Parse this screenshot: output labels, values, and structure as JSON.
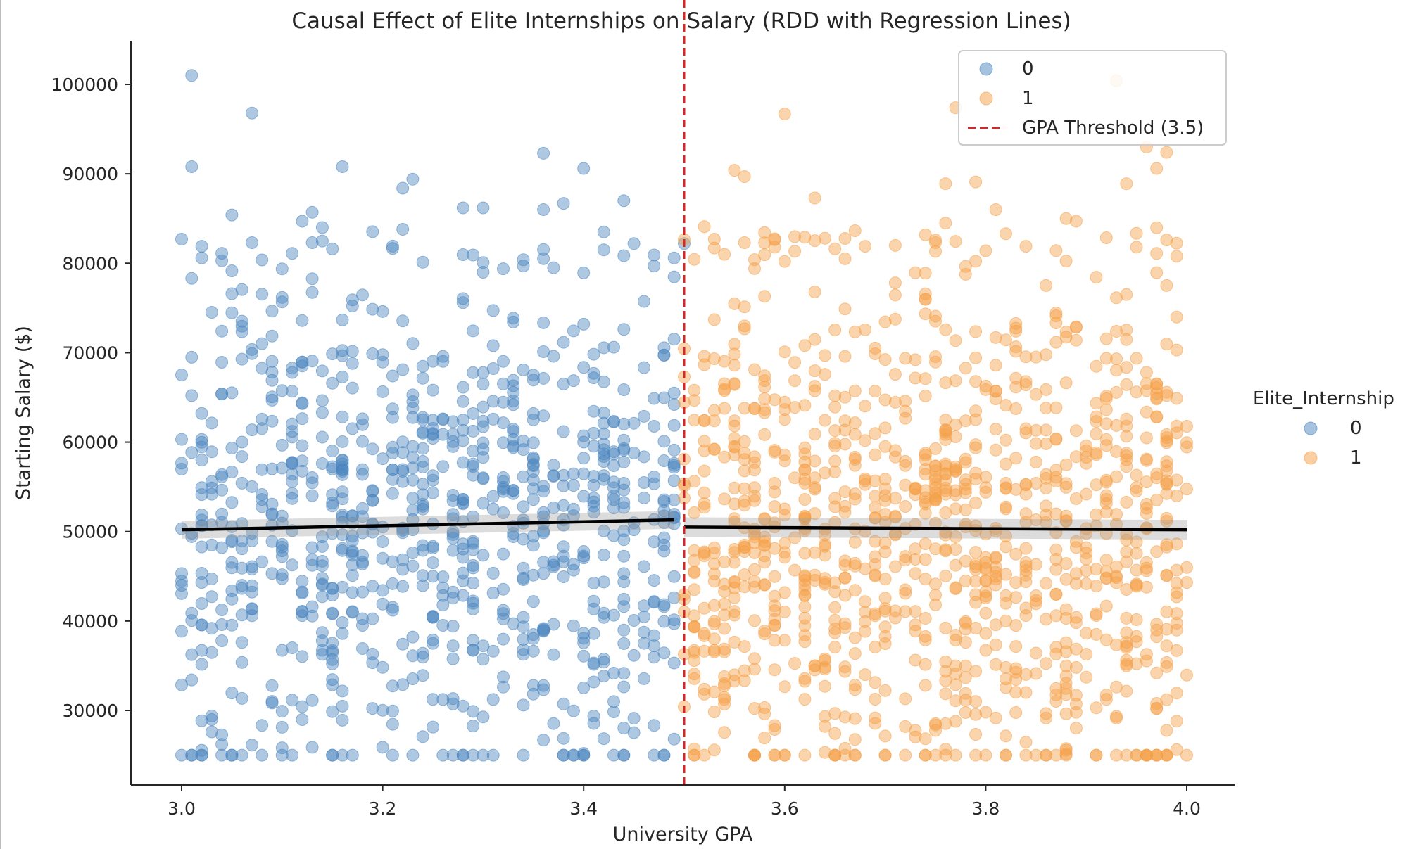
{
  "chart_data": {
    "type": "scatter",
    "title": "Causal Effect of Elite Internships on Salary (RDD with Regression Lines)",
    "xlabel": "University GPA",
    "ylabel": "Starting Salary ($)",
    "xlim": [
      2.95,
      4.05
    ],
    "ylim": [
      21500,
      104800
    ],
    "x_ticks": [
      3.0,
      3.2,
      3.4,
      3.6,
      3.8,
      4.0
    ],
    "x_tick_labels": [
      "3.0",
      "3.2",
      "3.4",
      "3.6",
      "3.8",
      "4.0"
    ],
    "y_ticks": [
      30000,
      40000,
      50000,
      60000,
      70000,
      80000,
      90000,
      100000
    ],
    "y_tick_labels": [
      "30000",
      "40000",
      "50000",
      "60000",
      "70000",
      "80000",
      "90000",
      "100000"
    ],
    "grid": false,
    "threshold": {
      "x": 3.5,
      "label": "GPA Threshold (3.5)",
      "color": "#d62728"
    },
    "legend_inside": {
      "placement": "top-right",
      "entries": [
        {
          "label": "0",
          "color": "#4c86bf"
        },
        {
          "label": "1",
          "color": "#f5a048"
        },
        {
          "label": "GPA Threshold (3.5)",
          "color": "#d62728"
        }
      ]
    },
    "legend_outside": {
      "placement": "right",
      "title": "Elite_Internship",
      "entries": [
        {
          "label": "0",
          "color": "#4c86bf"
        },
        {
          "label": "1",
          "color": "#f5a048"
        }
      ]
    },
    "regression_lines": [
      {
        "group": "0",
        "x": [
          3.0,
          3.49
        ],
        "y": [
          50200,
          51300
        ],
        "ci_halfwidth": 1000,
        "color": "#000000"
      },
      {
        "group": "1",
        "x": [
          3.5,
          4.0
        ],
        "y": [
          50500,
          50200
        ],
        "ci_halfwidth": 1100,
        "color": "#000000"
      }
    ],
    "series": [
      {
        "name": "0",
        "color": "#4c86bf",
        "n_points": 900,
        "x_range": [
          3.0,
          3.5
        ],
        "notable_points": [
          [
            3.01,
            101000
          ],
          [
            3.07,
            96800
          ],
          [
            3.01,
            90800
          ],
          [
            3.16,
            90800
          ],
          [
            3.36,
            92300
          ],
          [
            3.4,
            90600
          ],
          [
            3.22,
            88400
          ],
          [
            3.23,
            89400
          ],
          [
            3.28,
            86200
          ],
          [
            3.3,
            86200
          ],
          [
            3.36,
            86000
          ],
          [
            3.44,
            87000
          ],
          [
            3.38,
            86700
          ],
          [
            3.0,
            82700
          ],
          [
            3.05,
            85400
          ],
          [
            3.12,
            84700
          ],
          [
            3.13,
            85700
          ],
          [
            3.22,
            83800
          ],
          [
            3.42,
            83500
          ],
          [
            3.5,
            82200
          ],
          [
            3.47,
            79700
          ],
          [
            3.49,
            80600
          ],
          [
            3.02,
            81900
          ],
          [
            3.07,
            82300
          ],
          [
            3.15,
            81600
          ],
          [
            3.45,
            82200
          ],
          [
            3.42,
            81500
          ],
          [
            3.3,
            79000
          ],
          [
            3.34,
            79700
          ],
          [
            3.37,
            79500
          ]
        ],
        "floor_value": 25000
      },
      {
        "name": "1",
        "color": "#f5a048",
        "n_points": 1100,
        "x_range": [
          3.5,
          4.0
        ],
        "notable_points": [
          [
            3.6,
            96700
          ],
          [
            3.93,
            100400
          ],
          [
            3.77,
            97400
          ],
          [
            3.98,
            92400
          ],
          [
            3.96,
            93000
          ],
          [
            3.97,
            90600
          ],
          [
            3.94,
            88900
          ],
          [
            3.55,
            90400
          ],
          [
            3.56,
            89700
          ],
          [
            3.63,
            87300
          ],
          [
            3.76,
            88900
          ],
          [
            3.79,
            89100
          ],
          [
            3.52,
            84100
          ],
          [
            3.53,
            82700
          ],
          [
            3.56,
            82300
          ],
          [
            3.76,
            84500
          ],
          [
            3.81,
            86000
          ],
          [
            3.82,
            83300
          ],
          [
            3.88,
            85000
          ],
          [
            3.89,
            84700
          ],
          [
            3.71,
            82000
          ],
          [
            3.75,
            82300
          ],
          [
            3.84,
            81900
          ],
          [
            3.97,
            81100
          ],
          [
            3.95,
            81800
          ],
          [
            3.57,
            79400
          ],
          [
            3.59,
            81800
          ],
          [
            3.66,
            80500
          ],
          [
            3.68,
            81900
          ],
          [
            3.8,
            81400
          ]
        ],
        "floor_value": 25000
      }
    ]
  }
}
